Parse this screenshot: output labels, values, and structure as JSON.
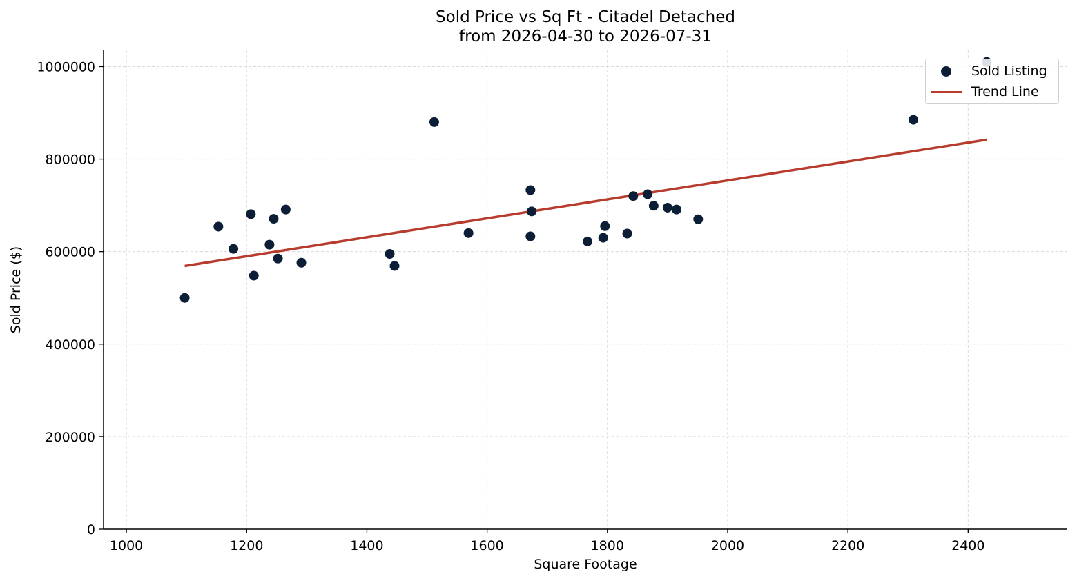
{
  "chart_data": {
    "type": "scatter",
    "title": "Sold Price vs Sq Ft - Citadel Detached",
    "subtitle": "from 2026-04-30 to 2026-07-31",
    "xlabel": "Square Footage",
    "ylabel": "Sold Price ($)",
    "xlim": [
      962,
      2565
    ],
    "ylim": [
      0,
      1035000
    ],
    "xticks": [
      1000,
      1200,
      1400,
      1600,
      1800,
      2000,
      2200,
      2400
    ],
    "yticks": [
      0,
      200000,
      400000,
      600000,
      800000,
      1000000
    ],
    "grid": true,
    "legend_position": "top-right",
    "series": [
      {
        "name": "Sold Listing",
        "kind": "scatter",
        "color": "#0b1e36",
        "points": [
          [
            1097,
            500000
          ],
          [
            1153,
            654000
          ],
          [
            1178,
            606000
          ],
          [
            1207,
            681000
          ],
          [
            1212,
            548000
          ],
          [
            1238,
            615000
          ],
          [
            1245,
            671000
          ],
          [
            1252,
            585000
          ],
          [
            1265,
            691000
          ],
          [
            1291,
            576000
          ],
          [
            1438,
            595000
          ],
          [
            1446,
            569000
          ],
          [
            1512,
            880000
          ],
          [
            1569,
            640000
          ],
          [
            1672,
            633000
          ],
          [
            1672,
            733000
          ],
          [
            1674,
            687000
          ],
          [
            1767,
            622000
          ],
          [
            1793,
            630000
          ],
          [
            1796,
            655000
          ],
          [
            1833,
            639000
          ],
          [
            1843,
            720000
          ],
          [
            1867,
            724000
          ],
          [
            1877,
            699000
          ],
          [
            1900,
            695000
          ],
          [
            1915,
            691000
          ],
          [
            1951,
            670000
          ],
          [
            2309,
            885000
          ],
          [
            2431,
            1010000
          ]
        ]
      },
      {
        "name": "Trend Line",
        "kind": "line",
        "color": "#b83c2e",
        "points": [
          [
            1097,
            569000
          ],
          [
            2431,
            842000
          ]
        ]
      }
    ]
  }
}
